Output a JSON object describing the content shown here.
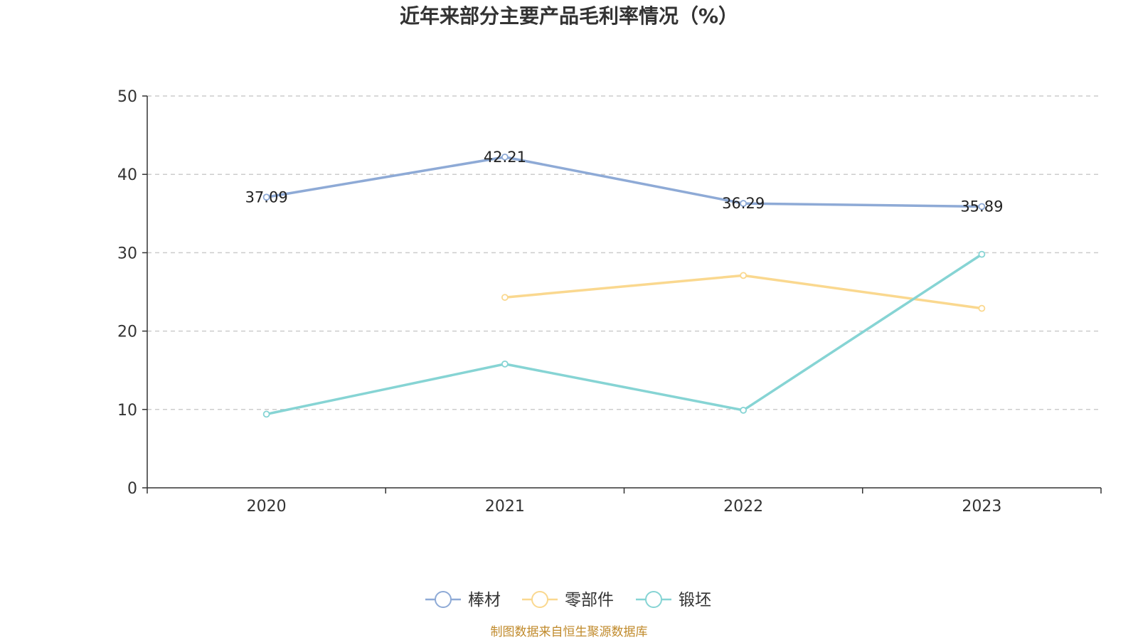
{
  "chart_data": {
    "type": "line",
    "title": "近年来部分主要产品毛利率情况（%）",
    "xlabel": "",
    "ylabel": "",
    "categories": [
      "2020",
      "2021",
      "2022",
      "2023"
    ],
    "ylim": [
      0,
      50
    ],
    "yticks": [
      0,
      10,
      20,
      30,
      40,
      50
    ],
    "grid": true,
    "legend_position": "bottom",
    "series": [
      {
        "name": "棒材",
        "color": "#8eaad6",
        "values": [
          37.09,
          42.21,
          36.29,
          35.89
        ],
        "labels": [
          "37.09",
          "42.21",
          "36.29",
          "35.89"
        ]
      },
      {
        "name": "零部件",
        "color": "#fad88f",
        "values": [
          null,
          24.3,
          27.1,
          22.9
        ],
        "labels": []
      },
      {
        "name": "锻坯",
        "color": "#86d4d4",
        "values": [
          9.4,
          15.8,
          9.9,
          29.8
        ],
        "labels": []
      }
    ],
    "source": "制图数据来自恒生聚源数据库",
    "source_color": "#c08a2b"
  }
}
